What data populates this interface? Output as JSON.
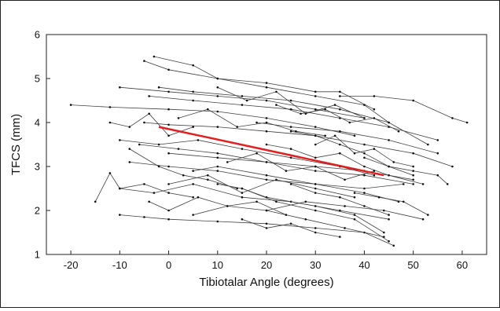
{
  "chart_data": {
    "type": "line",
    "title": "",
    "xlabel": "Tibiotalar Angle (degrees)",
    "ylabel": "TFCS (mm)",
    "xlim": [
      -25,
      65
    ],
    "ylim": [
      1,
      6
    ],
    "x_ticks": [
      -20,
      -10,
      0,
      10,
      20,
      30,
      40,
      50,
      60
    ],
    "y_ticks": [
      1,
      2,
      3,
      4,
      5,
      6
    ],
    "grid": false,
    "legend": "none",
    "series_color": "#404040",
    "fit_color": "#e02020",
    "fit_line": {
      "x": [
        -2,
        44
      ],
      "y": [
        3.9,
        2.8
      ]
    },
    "series": [
      {
        "x": [
          -20,
          -12,
          0,
          10,
          20,
          30,
          38
        ],
        "y": [
          4.4,
          4.35,
          4.3,
          4.25,
          4.1,
          3.9,
          3.7
        ]
      },
      {
        "x": [
          -15,
          -12,
          -10,
          -5,
          0,
          5
        ],
        "y": [
          2.2,
          2.85,
          2.5,
          2.6,
          2.4,
          2.3
        ]
      },
      {
        "x": [
          -10,
          -5,
          0,
          10,
          20,
          30,
          40,
          46
        ],
        "y": [
          1.9,
          1.85,
          1.8,
          1.75,
          1.7,
          1.6,
          1.5,
          1.2
        ]
      },
      {
        "x": [
          -10,
          -3,
          5,
          15,
          25,
          35,
          45
        ],
        "y": [
          2.5,
          2.4,
          2.6,
          2.3,
          2.2,
          2.0,
          1.8
        ]
      },
      {
        "x": [
          -8,
          0,
          10,
          20,
          30,
          40,
          48
        ],
        "y": [
          3.1,
          3.0,
          2.9,
          2.7,
          2.6,
          2.5,
          2.6
        ]
      },
      {
        "x": [
          -6,
          2,
          10,
          20,
          30,
          40,
          50
        ],
        "y": [
          3.5,
          3.4,
          3.3,
          3.1,
          3.0,
          2.9,
          2.7
        ]
      },
      {
        "x": [
          -5,
          0,
          10,
          20,
          30,
          40,
          50,
          58
        ],
        "y": [
          4.0,
          3.95,
          3.9,
          3.8,
          3.7,
          3.5,
          3.3,
          3.0
        ]
      },
      {
        "x": [
          -4,
          5,
          15,
          25,
          35,
          45,
          55
        ],
        "y": [
          4.6,
          4.5,
          4.4,
          4.3,
          4.1,
          3.9,
          3.6
        ]
      },
      {
        "x": [
          -5,
          0,
          10,
          20,
          30,
          40,
          45
        ],
        "y": [
          5.4,
          5.2,
          5.0,
          4.8,
          4.6,
          4.4,
          4.0
        ]
      },
      {
        "x": [
          -2,
          5,
          15,
          25,
          35,
          45,
          53
        ],
        "y": [
          4.8,
          4.7,
          4.6,
          4.5,
          4.3,
          4.0,
          3.5
        ]
      },
      {
        "x": [
          -3,
          5,
          10,
          20,
          30,
          35,
          42
        ],
        "y": [
          5.5,
          5.3,
          5.0,
          4.9,
          4.7,
          4.7,
          4.3
        ]
      },
      {
        "x": [
          -10,
          0,
          10,
          20,
          30,
          40
        ],
        "y": [
          4.8,
          4.7,
          4.6,
          4.5,
          4.3,
          4.1
        ]
      },
      {
        "x": [
          -10,
          -2,
          6,
          15,
          25,
          35,
          42
        ],
        "y": [
          3.6,
          3.5,
          3.6,
          3.4,
          3.2,
          3.0,
          2.8
        ]
      },
      {
        "x": [
          0,
          10,
          20,
          30,
          40,
          50
        ],
        "y": [
          3.3,
          3.2,
          3.1,
          2.9,
          2.8,
          2.6
        ]
      },
      {
        "x": [
          0,
          8,
          15,
          22,
          30,
          38
        ],
        "y": [
          2.6,
          2.8,
          2.4,
          2.7,
          2.5,
          2.3
        ]
      },
      {
        "x": [
          5,
          10,
          20,
          30,
          40,
          47
        ],
        "y": [
          2.9,
          3.0,
          2.8,
          2.6,
          2.4,
          2.2
        ]
      },
      {
        "x": [
          5,
          12,
          20,
          28,
          36,
          44
        ],
        "y": [
          1.9,
          2.1,
          2.0,
          1.8,
          1.6,
          1.4
        ]
      },
      {
        "x": [
          10,
          15,
          20,
          30,
          38,
          44
        ],
        "y": [
          2.6,
          2.5,
          2.3,
          2.1,
          1.9,
          1.5
        ]
      },
      {
        "x": [
          15,
          22,
          30,
          38,
          45
        ],
        "y": [
          2.5,
          2.2,
          2.0,
          1.8,
          1.3
        ]
      },
      {
        "x": [
          18,
          25,
          35,
          45,
          55
        ],
        "y": [
          4.0,
          3.9,
          3.8,
          3.6,
          3.3
        ]
      },
      {
        "x": [
          20,
          25,
          30,
          35,
          40,
          45,
          52
        ],
        "y": [
          3.5,
          3.4,
          3.2,
          3.3,
          3.0,
          2.8,
          2.6
        ]
      },
      {
        "x": [
          20,
          28,
          36,
          44,
          52
        ],
        "y": [
          2.0,
          2.2,
          2.1,
          2.0,
          1.8
        ]
      },
      {
        "x": [
          25,
          30,
          35,
          40,
          45,
          50
        ],
        "y": [
          3.8,
          3.7,
          3.5,
          3.3,
          3.0,
          2.8
        ]
      },
      {
        "x": [
          25,
          30,
          35,
          40,
          45
        ],
        "y": [
          2.6,
          2.4,
          2.3,
          2.1,
          1.9
        ]
      },
      {
        "x": [
          35,
          42,
          50,
          58,
          61
        ],
        "y": [
          4.6,
          4.6,
          4.5,
          4.1,
          4.0
        ]
      },
      {
        "x": [
          38,
          43,
          48,
          53
        ],
        "y": [
          2.4,
          2.3,
          2.2,
          1.9
        ]
      },
      {
        "x": [
          40,
          45,
          50,
          55,
          57
        ],
        "y": [
          3.2,
          3.0,
          2.9,
          2.8,
          2.6
        ]
      },
      {
        "x": [
          -12,
          -8,
          -4,
          0,
          5
        ],
        "y": [
          4.0,
          3.9,
          4.2,
          3.7,
          3.9
        ]
      },
      {
        "x": [
          -8,
          -2,
          3,
          8,
          14
        ],
        "y": [
          3.4,
          3.0,
          2.8,
          2.7,
          2.5
        ]
      },
      {
        "x": [
          2,
          8,
          14,
          20,
          26,
          32
        ],
        "y": [
          4.1,
          4.3,
          3.9,
          4.0,
          3.8,
          3.7
        ]
      },
      {
        "x": [
          10,
          16,
          22,
          28,
          34,
          40
        ],
        "y": [
          4.8,
          4.5,
          4.7,
          4.2,
          4.4,
          4.1
        ]
      },
      {
        "x": [
          12,
          18,
          24,
          30,
          36,
          42
        ],
        "y": [
          3.1,
          3.3,
          2.9,
          3.0,
          2.7,
          2.9
        ]
      },
      {
        "x": [
          30,
          34,
          38,
          42,
          46,
          50
        ],
        "y": [
          3.5,
          3.7,
          3.3,
          3.4,
          3.1,
          3.0
        ]
      },
      {
        "x": [
          15,
          20,
          25,
          30,
          35
        ],
        "y": [
          1.8,
          1.6,
          1.7,
          1.5,
          1.4
        ]
      },
      {
        "x": [
          -4,
          0,
          6,
          12,
          18,
          24
        ],
        "y": [
          2.2,
          2.0,
          2.3,
          2.1,
          2.2,
          1.9
        ]
      },
      {
        "x": [
          22,
          27,
          32,
          37,
          42,
          47
        ],
        "y": [
          4.4,
          4.2,
          4.3,
          4.0,
          4.1,
          3.8
        ]
      }
    ]
  }
}
